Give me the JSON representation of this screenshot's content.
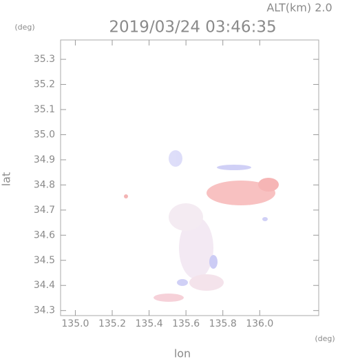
{
  "chart_data": {
    "type": "map",
    "title": "2019/03/24 03:46:35",
    "subtitle": "ALT(km) 2.0",
    "x_label": "lon",
    "y_label": "lat",
    "x_unit": "(deg)",
    "y_unit": "(deg)",
    "xlim": [
      134.92,
      136.32
    ],
    "ylim": [
      34.28,
      35.377
    ],
    "xticks": [
      {
        "value": 135.0,
        "label": "135.0"
      },
      135.2,
      135.4,
      135.6,
      135.8,
      {
        "value": 136.0,
        "label": "136.0"
      }
    ],
    "yticks": [
      34.3,
      34.4,
      34.5,
      34.6,
      34.7,
      34.8,
      34.9,
      {
        "value": 35.0,
        "label": "35.0"
      },
      35.1,
      35.2,
      35.3
    ]
  }
}
